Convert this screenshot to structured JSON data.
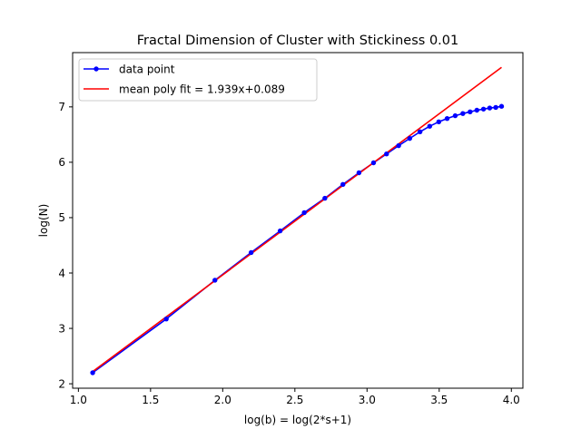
{
  "chart_data": {
    "type": "line",
    "title": "Fractal Dimension of Cluster with Stickiness 0.01",
    "xlabel": "log(b) = log(2*s+1)",
    "ylabel": "log(N)",
    "xlim": [
      0.96,
      4.08
    ],
    "ylim": [
      1.92,
      7.98
    ],
    "xticks": [
      1.0,
      1.5,
      2.0,
      2.5,
      3.0,
      3.5,
      4.0
    ],
    "xtick_labels": [
      "1.0",
      "1.5",
      "2.0",
      "2.5",
      "3.0",
      "3.5",
      "4.0"
    ],
    "yticks": [
      2,
      3,
      4,
      5,
      6,
      7
    ],
    "ytick_labels": [
      "2",
      "3",
      "4",
      "5",
      "6",
      "7"
    ],
    "grid": false,
    "legend_position": "upper-left",
    "series": [
      {
        "name": "data point",
        "kind": "line-with-markers",
        "color": "#0000ff",
        "x": [
          1.099,
          1.609,
          1.946,
          2.197,
          2.398,
          2.565,
          2.708,
          2.833,
          2.944,
          3.045,
          3.135,
          3.219,
          3.296,
          3.367,
          3.434,
          3.497,
          3.555,
          3.611,
          3.664,
          3.714,
          3.761,
          3.807,
          3.85,
          3.892,
          3.932
        ],
        "y": [
          2.2,
          3.17,
          3.87,
          4.37,
          4.76,
          5.09,
          5.35,
          5.6,
          5.81,
          5.99,
          6.15,
          6.3,
          6.43,
          6.55,
          6.65,
          6.73,
          6.79,
          6.84,
          6.88,
          6.91,
          6.94,
          6.96,
          6.98,
          6.99,
          7.01
        ]
      },
      {
        "name": "mean poly fit = 1.939x+0.089",
        "kind": "line",
        "color": "#ff0000",
        "slope": 1.939,
        "intercept": 0.089,
        "x": [
          1.099,
          3.932
        ]
      }
    ]
  }
}
